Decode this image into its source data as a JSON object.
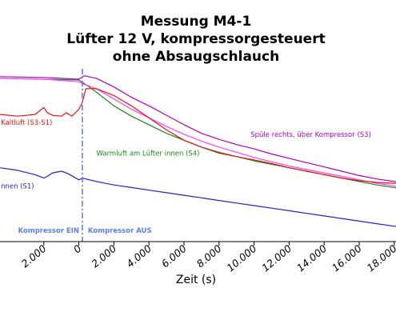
{
  "chart_data": {
    "type": "line",
    "title_lines": [
      "Messung M4-1",
      "Lüfter 12 V, kompressorgesteuert",
      "ohne Absaugschlauch"
    ],
    "xlabel": "Zeit (s)",
    "ylabel": "",
    "xlim": [
      -4500,
      18100
    ],
    "ylim": [
      0,
      100
    ],
    "x_ticks": [
      {
        "value": -2000,
        "label": "2.000"
      },
      {
        "value": 0,
        "label": "0"
      },
      {
        "value": 2000,
        "label": "2.000"
      },
      {
        "value": 4000,
        "label": "4.000"
      },
      {
        "value": 6000,
        "label": "6.000"
      },
      {
        "value": 8000,
        "label": "8.000"
      },
      {
        "value": 10000,
        "label": "10.000"
      },
      {
        "value": 12000,
        "label": "12.000"
      },
      {
        "value": 14000,
        "label": "14.000"
      },
      {
        "value": 16000,
        "label": "16.000"
      },
      {
        "value": 18000,
        "label": "18.000"
      }
    ],
    "markers": [
      {
        "x": 200,
        "color": "#5b7ff0",
        "label_left": "Kompressor EIN",
        "label_right": "Kompressor AUS"
      }
    ],
    "series": [
      {
        "name": "Spüle rechts, über Kompressor (S3)",
        "color": "#b000c0",
        "label_x": 9800,
        "label_y": 60,
        "points": [
          [
            -4500,
            95
          ],
          [
            -2000,
            94.5
          ],
          [
            0,
            93.5
          ],
          [
            300,
            95.5
          ],
          [
            1000,
            94
          ],
          [
            2000,
            89
          ],
          [
            3000,
            83
          ],
          [
            4000,
            78
          ],
          [
            5000,
            72.5
          ],
          [
            6000,
            67
          ],
          [
            7000,
            62
          ],
          [
            8000,
            58.5
          ],
          [
            9000,
            55.5
          ],
          [
            10000,
            53
          ],
          [
            11000,
            50
          ],
          [
            12000,
            47.5
          ],
          [
            13000,
            45
          ],
          [
            14000,
            42.5
          ],
          [
            15000,
            40
          ],
          [
            16000,
            37.5
          ],
          [
            17000,
            35.5
          ],
          [
            18000,
            34
          ],
          [
            18100,
            33.8
          ]
        ]
      },
      {
        "name": "Warmluft am Lüfter innen (S4)",
        "color": "#1a8a1a",
        "label_x": 1000,
        "label_y": 49,
        "points": [
          [
            -4500,
            94
          ],
          [
            -2000,
            93.5
          ],
          [
            0,
            93
          ],
          [
            300,
            91
          ],
          [
            1000,
            86
          ],
          [
            2000,
            78
          ],
          [
            3000,
            72
          ],
          [
            4000,
            67
          ],
          [
            5000,
            62
          ],
          [
            6000,
            58
          ],
          [
            7000,
            54
          ],
          [
            8000,
            51
          ],
          [
            9000,
            48.5
          ],
          [
            10000,
            46
          ],
          [
            11000,
            44
          ],
          [
            12000,
            42
          ],
          [
            13000,
            40
          ],
          [
            14000,
            38
          ],
          [
            15000,
            36
          ],
          [
            16000,
            34
          ],
          [
            17000,
            32
          ],
          [
            18000,
            30.5
          ],
          [
            18100,
            30.4
          ]
        ]
      },
      {
        "name": "",
        "color": "#ff40ff",
        "label_x": null,
        "label_y": null,
        "points": [
          [
            -4500,
            94
          ],
          [
            -2000,
            93.5
          ],
          [
            0,
            92
          ],
          [
            300,
            90.5
          ],
          [
            1000,
            88
          ],
          [
            2000,
            82
          ],
          [
            3000,
            76
          ],
          [
            4000,
            71
          ],
          [
            5000,
            66
          ],
          [
            6000,
            61.5
          ],
          [
            7000,
            57.5
          ],
          [
            8000,
            54
          ],
          [
            9000,
            51
          ],
          [
            10000,
            48
          ],
          [
            11000,
            45.5
          ],
          [
            12000,
            43
          ],
          [
            13000,
            41
          ],
          [
            14000,
            39
          ],
          [
            15000,
            37
          ],
          [
            16000,
            35
          ],
          [
            17000,
            33
          ],
          [
            18000,
            31.5
          ],
          [
            18100,
            31.4
          ]
        ]
      },
      {
        "name": "Kaltluft (S3-S1)",
        "color": "#ee1111",
        "label_x": -4450,
        "label_y": 67,
        "points": [
          [
            -4500,
            73
          ],
          [
            -3500,
            72
          ],
          [
            -2500,
            73
          ],
          [
            -2000,
            77
          ],
          [
            -1800,
            74
          ],
          [
            -1500,
            72.5
          ],
          [
            -1000,
            72
          ],
          [
            -700,
            74
          ],
          [
            -400,
            72
          ],
          [
            0,
            76
          ],
          [
            200,
            80
          ],
          [
            400,
            88
          ],
          [
            1000,
            88
          ],
          [
            2000,
            84
          ],
          [
            3000,
            78
          ],
          [
            4000,
            71
          ],
          [
            5000,
            64
          ],
          [
            6000,
            58
          ],
          [
            7000,
            54
          ],
          [
            8000,
            50.5
          ],
          [
            9000,
            48.5
          ],
          [
            10000,
            46.5
          ],
          [
            11000,
            44.5
          ],
          [
            12000,
            42
          ],
          [
            13000,
            40
          ],
          [
            14000,
            38
          ],
          [
            15000,
            36
          ],
          [
            16000,
            34.5
          ],
          [
            17000,
            33.5
          ],
          [
            18000,
            33
          ],
          [
            18100,
            33
          ]
        ]
      },
      {
        "name": "nnen (S1)",
        "color": "#2222cc",
        "label_x": -4450,
        "label_y": 30,
        "points": [
          [
            -4500,
            42
          ],
          [
            -3500,
            40.5
          ],
          [
            -2500,
            38
          ],
          [
            -2000,
            36
          ],
          [
            -1800,
            37
          ],
          [
            -1500,
            39
          ],
          [
            -1000,
            40
          ],
          [
            -600,
            38.5
          ],
          [
            0,
            35
          ],
          [
            200,
            36
          ],
          [
            1000,
            34
          ],
          [
            2000,
            32
          ],
          [
            3000,
            30.5
          ],
          [
            4000,
            29
          ],
          [
            5000,
            27.5
          ],
          [
            6000,
            26
          ],
          [
            7000,
            24.5
          ],
          [
            8000,
            23
          ],
          [
            9000,
            21.5
          ],
          [
            10000,
            20
          ],
          [
            11000,
            18.5
          ],
          [
            12000,
            17
          ],
          [
            13000,
            15.5
          ],
          [
            14000,
            14
          ],
          [
            15000,
            12.5
          ],
          [
            16000,
            11
          ],
          [
            17000,
            9.5
          ],
          [
            18000,
            8
          ],
          [
            18100,
            8
          ]
        ]
      }
    ]
  }
}
